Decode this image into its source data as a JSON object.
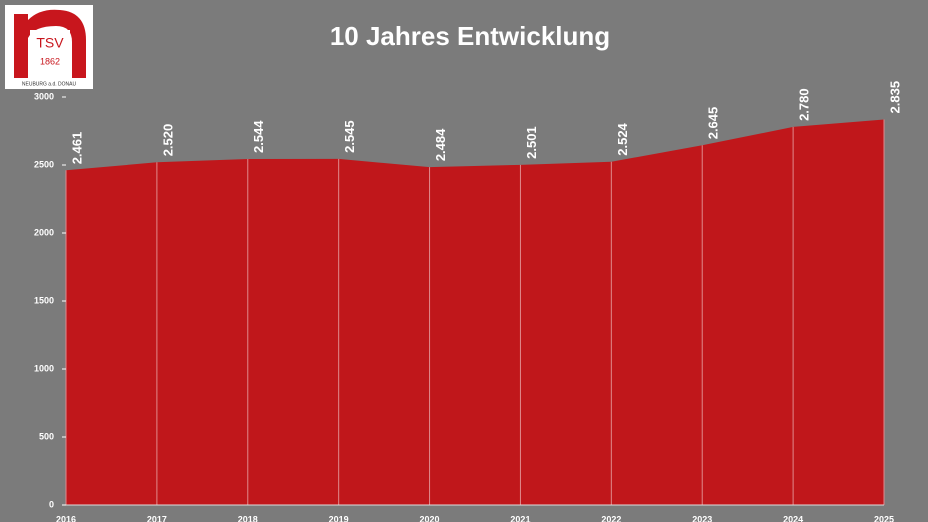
{
  "logo": {
    "name": "TSV",
    "year": "1862",
    "place": "NEUBURG a.d. DONAU"
  },
  "chart_data": {
    "type": "area",
    "title": "10 Jahres Entwicklung",
    "categories": [
      "2016",
      "2017",
      "2018",
      "2019",
      "2020",
      "2021",
      "2022",
      "2023",
      "2024",
      "2025"
    ],
    "values": [
      2461,
      2520,
      2544,
      2545,
      2484,
      2501,
      2524,
      2645,
      2780,
      2835
    ],
    "value_labels": [
      "2.461",
      "2.520",
      "2.544",
      "2.545",
      "2.484",
      "2.501",
      "2.524",
      "2.645",
      "2.780",
      "2.835"
    ],
    "color": "#c0171b",
    "ylim": [
      0,
      3000
    ],
    "yticks": [
      0,
      500,
      1000,
      1500,
      2000,
      2500,
      3000
    ],
    "grid": true
  }
}
